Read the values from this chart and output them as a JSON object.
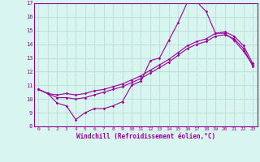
{
  "xlabel": "Windchill (Refroidissement éolien,°C)",
  "bg_color": "#d8f5f0",
  "grid_color": "#b8dcd8",
  "line_color": "#990099",
  "xlim": [
    -0.5,
    23.5
  ],
  "ylim": [
    8,
    17
  ],
  "xticks": [
    0,
    1,
    2,
    3,
    4,
    5,
    6,
    7,
    8,
    9,
    10,
    11,
    12,
    13,
    14,
    15,
    16,
    17,
    18,
    19,
    20,
    21,
    22,
    23
  ],
  "yticks": [
    8,
    9,
    10,
    11,
    12,
    13,
    14,
    15,
    16,
    17
  ],
  "line1_x": [
    0,
    1,
    2,
    3,
    4,
    5,
    6,
    7,
    8,
    9,
    10,
    11,
    12,
    13,
    14,
    15,
    16,
    17,
    18,
    19,
    20,
    21,
    22,
    23
  ],
  "line1_y": [
    10.7,
    10.4,
    9.7,
    9.5,
    8.5,
    9.0,
    9.3,
    9.3,
    9.5,
    9.8,
    11.0,
    11.3,
    12.8,
    13.0,
    14.3,
    15.6,
    17.1,
    17.1,
    16.4,
    14.8,
    14.8,
    14.3,
    13.5,
    12.5
  ],
  "line2_x": [
    0,
    1,
    2,
    3,
    4,
    5,
    6,
    7,
    8,
    9,
    10,
    11,
    12,
    13,
    14,
    15,
    16,
    17,
    18,
    19,
    20,
    21,
    22,
    23
  ],
  "line2_y": [
    10.7,
    10.4,
    10.3,
    10.4,
    10.3,
    10.4,
    10.6,
    10.7,
    10.9,
    11.1,
    11.4,
    11.7,
    12.1,
    12.5,
    12.9,
    13.4,
    13.9,
    14.2,
    14.4,
    14.8,
    14.9,
    14.6,
    13.9,
    12.6
  ],
  "line3_x": [
    0,
    1,
    2,
    3,
    4,
    5,
    6,
    7,
    8,
    9,
    10,
    11,
    12,
    13,
    14,
    15,
    16,
    17,
    18,
    19,
    20,
    21,
    22,
    23
  ],
  "line3_y": [
    10.7,
    10.4,
    10.1,
    10.1,
    10.0,
    10.1,
    10.3,
    10.5,
    10.7,
    10.9,
    11.2,
    11.5,
    11.9,
    12.3,
    12.7,
    13.2,
    13.7,
    14.0,
    14.2,
    14.6,
    14.7,
    14.4,
    13.7,
    12.4
  ]
}
